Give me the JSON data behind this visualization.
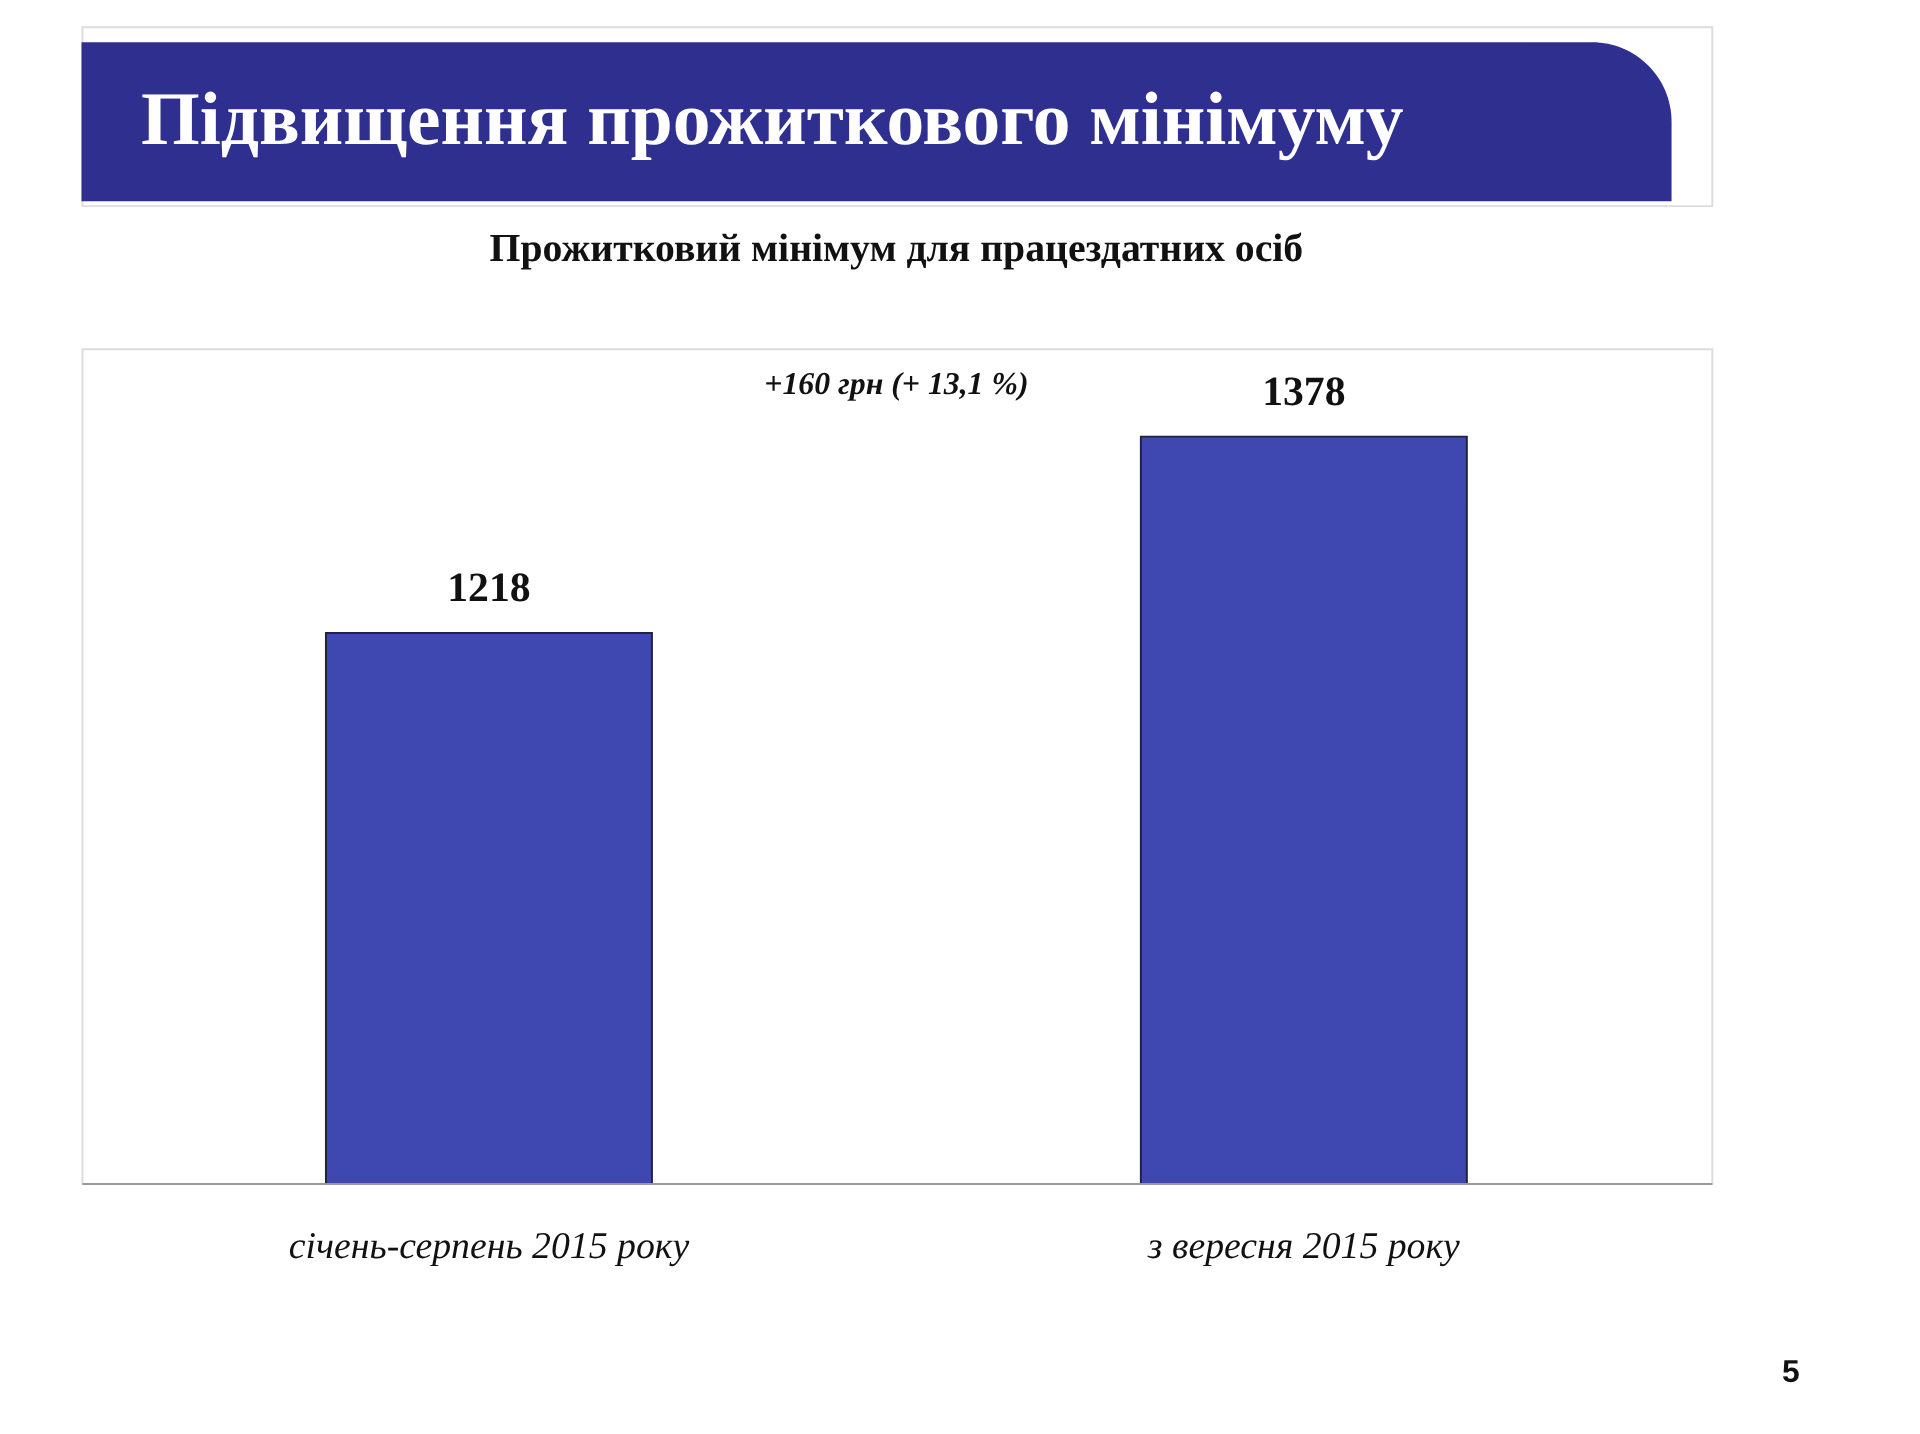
{
  "chart_data": {
    "type": "bar",
    "title": "Підвищення прожиткового мінімуму",
    "subtitle": "Прожитковий мінімум для працездатних осіб",
    "categories": [
      "січень-серпень 2015 року",
      "з вересня 2015 року"
    ],
    "values": [
      1218,
      1378
    ],
    "color": "#3f48b0",
    "data_labels": true,
    "ylim": [
      770,
      1450
    ],
    "tick_labels": "x",
    "grid": false,
    "annotations": [
      "+160 грн (+ 13,1 %)",
      "5"
    ]
  }
}
